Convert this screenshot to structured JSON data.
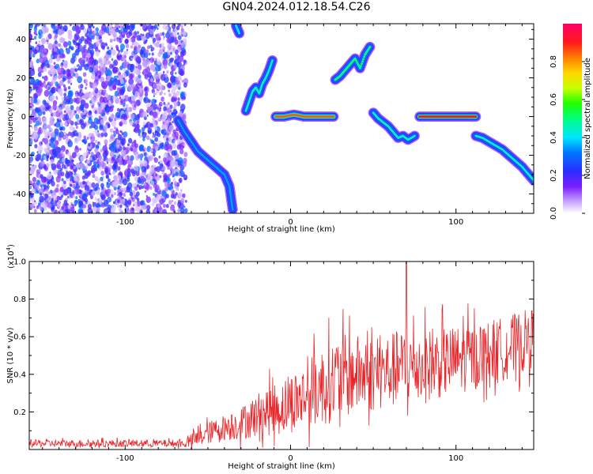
{
  "title": "GN04.2024.012.18.54.C26",
  "chart_data": [
    {
      "type": "heatmap",
      "xlabel": "Height of straight line (km)",
      "ylabel": "Frequency (Hz)",
      "xlim": [
        -158,
        147
      ],
      "ylim": [
        -50,
        48
      ],
      "x_ticks": [
        -100,
        0,
        100
      ],
      "y_ticks": [
        -40,
        -20,
        0,
        20,
        40
      ],
      "grid": false,
      "noise_region": {
        "x_range": [
          -158,
          -65
        ],
        "y_range": [
          -50,
          48
        ],
        "level": 0.25
      },
      "traces": [
        {
          "x": [
            -68,
            -64,
            -60,
            -56,
            -52,
            -48,
            -44,
            -40,
            -37,
            -36,
            -35
          ],
          "y": [
            -2,
            -8,
            -13,
            -18,
            -21,
            -24,
            -27,
            -30,
            -36,
            -42,
            -48
          ],
          "level": 0.35
        },
        {
          "x": [
            -33,
            -32,
            -31
          ],
          "y": [
            47,
            45,
            43
          ],
          "level": 0.4
        },
        {
          "x": [
            -27,
            -25,
            -23,
            -21,
            -19,
            -17,
            -15,
            -13,
            -11
          ],
          "y": [
            3,
            8,
            13,
            15,
            12,
            17,
            20,
            24,
            29
          ],
          "level": 0.45
        },
        {
          "x": [
            -9,
            -4,
            2,
            8,
            14,
            20,
            26
          ],
          "y": [
            0,
            0,
            1,
            0,
            0,
            0,
            0
          ],
          "level": 0.85
        },
        {
          "x": [
            27,
            30,
            33,
            36,
            39,
            42,
            45,
            48
          ],
          "y": [
            19,
            21,
            24,
            27,
            30,
            25,
            32,
            36
          ],
          "level": 0.5
        },
        {
          "x": [
            50,
            53,
            56,
            59,
            62,
            65,
            68,
            71,
            75
          ],
          "y": [
            2,
            -1,
            -3,
            -5,
            -8,
            -11,
            -10,
            -12,
            -10
          ],
          "level": 0.45
        },
        {
          "x": [
            78,
            84,
            90,
            96,
            102,
            108,
            112
          ],
          "y": [
            0,
            0,
            0,
            0,
            0,
            0,
            0
          ],
          "level": 0.95
        },
        {
          "x": [
            112,
            116,
            120,
            124,
            128,
            132,
            136,
            140,
            144,
            147
          ],
          "y": [
            -10,
            -11,
            -13,
            -15,
            -17,
            -20,
            -23,
            -26,
            -30,
            -33
          ],
          "level": 0.45
        }
      ],
      "colorbar": {
        "label": "Normalized spectral amplitude",
        "range": [
          0.0,
          1.0
        ],
        "ticks": [
          0.0,
          0.2,
          0.4,
          0.6,
          0.8
        ],
        "tick_labels": [
          "0.0",
          "0.2",
          "0.4",
          "0.6",
          "0.8"
        ]
      }
    },
    {
      "type": "line",
      "xlabel": "Height of straight line (km)",
      "ylabel": "SNR (10 * v/v)",
      "y_multiplier": "(x10",
      "y_multiplier_exp": "4",
      "y_multiplier_close": ")",
      "xlim": [
        -158,
        147
      ],
      "ylim": [
        0,
        1.0
      ],
      "x_ticks": [
        -100,
        0,
        100
      ],
      "y_ticks": [
        0.2,
        0.4,
        0.6,
        0.8,
        1.0
      ],
      "y_tick_labels": [
        "0.2",
        "0.4",
        "0.6",
        "0.8",
        "1.0"
      ],
      "grid": false,
      "series": [
        {
          "color": "#e8262a",
          "profile_x": [
            -158,
            -120,
            -90,
            -65,
            -60,
            -55,
            -50,
            -45,
            -40,
            -35,
            -30,
            -25,
            -20,
            -15,
            -10,
            -5,
            0,
            5,
            10,
            15,
            20,
            25,
            30,
            40,
            50,
            60,
            70,
            80,
            90,
            100,
            110,
            120,
            130,
            140,
            147
          ],
          "profile_base": [
            0.03,
            0.03,
            0.03,
            0.03,
            0.04,
            0.06,
            0.08,
            0.1,
            0.11,
            0.12,
            0.13,
            0.15,
            0.17,
            0.19,
            0.2,
            0.21,
            0.23,
            0.25,
            0.27,
            0.3,
            0.32,
            0.34,
            0.36,
            0.38,
            0.38,
            0.4,
            0.42,
            0.42,
            0.44,
            0.46,
            0.47,
            0.5,
            0.52,
            0.55,
            0.58
          ],
          "profile_amp": [
            0.04,
            0.04,
            0.04,
            0.04,
            0.08,
            0.1,
            0.12,
            0.12,
            0.14,
            0.16,
            0.18,
            0.2,
            0.24,
            0.26,
            0.28,
            0.3,
            0.32,
            0.34,
            0.36,
            0.4,
            0.42,
            0.44,
            0.46,
            0.42,
            0.4,
            0.4,
            0.42,
            0.4,
            0.38,
            0.36,
            0.36,
            0.34,
            0.34,
            0.34,
            0.32
          ],
          "peak": {
            "x": 70,
            "y": 1.0
          }
        }
      ]
    }
  ]
}
